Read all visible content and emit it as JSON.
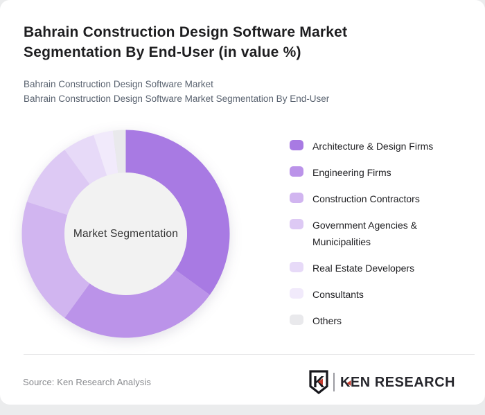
{
  "page": {
    "background": "#ebeced",
    "card_background": "#ffffff"
  },
  "header": {
    "title_lines": [
      "Bahrain Construction Design Software Market",
      "Segmentation By End-User (in value %)"
    ],
    "subtitle_lines": [
      "Bahrain Construction Design Software Market",
      "Bahrain Construction Design Software Market Segmentation By End-User"
    ]
  },
  "chart_data": {
    "type": "pie",
    "variant": "donut",
    "title": "Bahrain Construction Design Software Market Segmentation By End-User (in value %)",
    "center_label": "Market Segmentation",
    "unit": "value %",
    "start_angle_deg": 0,
    "direction": "clockwise",
    "legend_position": "right",
    "categories": [
      "Architecture & Design Firms",
      "Engineering Firms",
      "Construction Contractors",
      "Government Agencies & Municipalities",
      "Real Estate Developers",
      "Consultants",
      "Others"
    ],
    "values": [
      35,
      25,
      20,
      10,
      5,
      3,
      2
    ],
    "colors": [
      "#a87ae3",
      "#bb93e9",
      "#d1b5f0",
      "#ddc9f4",
      "#e7daf8",
      "#f1eafb",
      "#e9e9ec"
    ],
    "hole_color": "#f2f2f2"
  },
  "footer": {
    "source": "Source: Ken Research Analysis",
    "logo_monogram": "K",
    "logo_text_k": "K",
    "logo_text_rest": "EN RESEARCH",
    "logo_accent_color": "#c23b2e",
    "logo_dark_color": "#17171c"
  }
}
